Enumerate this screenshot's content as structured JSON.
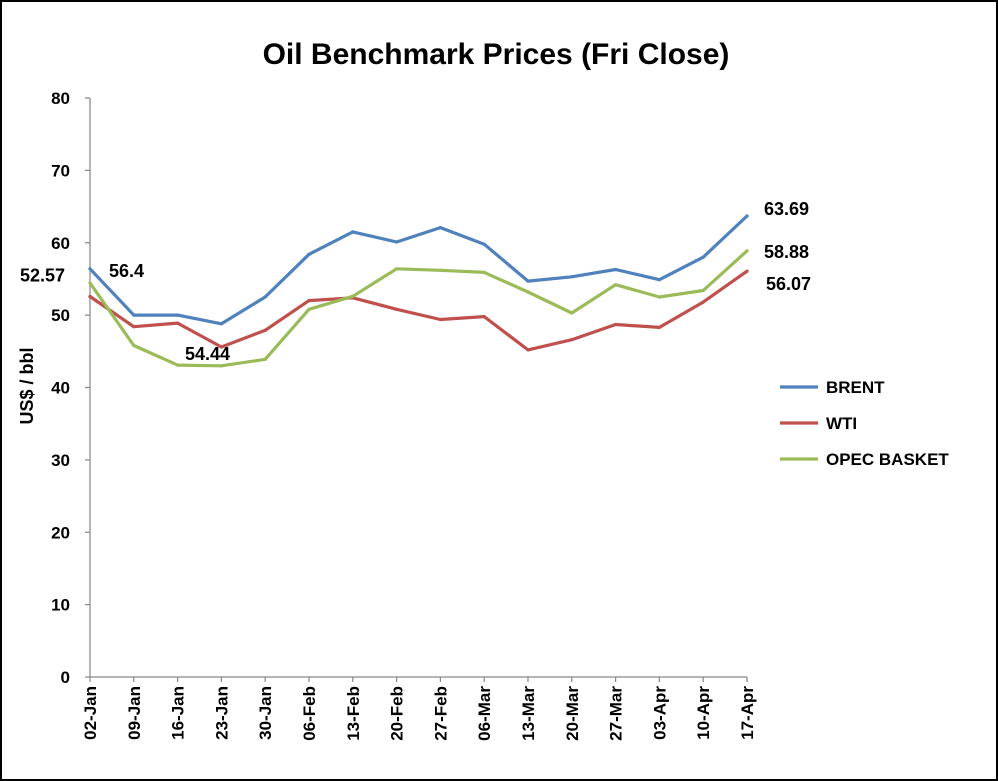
{
  "chart_data": {
    "type": "line",
    "title": "Oil Benchmark Prices (Fri Close)",
    "ylabel": "US$ / bbl",
    "xlabel": "",
    "ylim": [
      0,
      80
    ],
    "yticks": [
      0,
      10,
      20,
      30,
      40,
      50,
      60,
      70,
      80
    ],
    "grid": false,
    "legend_position": "right",
    "categories": [
      "02-Jan",
      "09-Jan",
      "16-Jan",
      "23-Jan",
      "30-Jan",
      "06-Feb",
      "13-Feb",
      "20-Feb",
      "27-Feb",
      "06-Mar",
      "13-Mar",
      "20-Mar",
      "27-Mar",
      "03-Apr",
      "10-Apr",
      "17-Apr"
    ],
    "series": [
      {
        "name": "BRENT",
        "color": "#4f81bd",
        "values": [
          56.4,
          50.0,
          50.0,
          48.8,
          52.5,
          58.4,
          61.5,
          60.1,
          62.1,
          59.8,
          54.7,
          55.3,
          56.3,
          54.9,
          58.0,
          63.69
        ]
      },
      {
        "name": "WTI",
        "color": "#c0504d",
        "values": [
          52.57,
          48.4,
          48.9,
          45.6,
          47.9,
          52.0,
          52.4,
          50.8,
          49.4,
          49.8,
          45.2,
          46.6,
          48.7,
          48.3,
          51.8,
          56.07
        ]
      },
      {
        "name": "OPEC BASKET",
        "color": "#9bbb59",
        "values": [
          54.44,
          45.8,
          43.1,
          43.0,
          43.9,
          50.8,
          52.6,
          56.4,
          56.2,
          55.9,
          53.2,
          50.3,
          54.2,
          52.5,
          53.4,
          58.88
        ]
      }
    ],
    "data_labels": [
      {
        "text": "56.4",
        "series": "BRENT",
        "index": 0
      },
      {
        "text": "52.57",
        "series": "WTI",
        "index": 0
      },
      {
        "text": "54.44",
        "series": "OPEC BASKET",
        "index": 0
      },
      {
        "text": "63.69",
        "series": "BRENT",
        "index": 15
      },
      {
        "text": "58.88",
        "series": "OPEC BASKET",
        "index": 15
      },
      {
        "text": "56.07",
        "series": "WTI",
        "index": 15
      }
    ]
  }
}
